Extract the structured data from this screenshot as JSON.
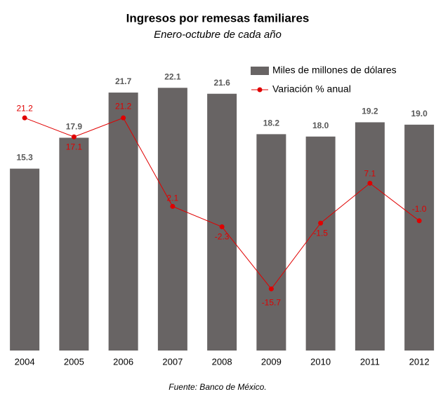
{
  "chart_data": {
    "type": "bar_line",
    "title": "Ingresos por remesas familiares",
    "subtitle": "Enero-octubre de cada año",
    "source": "Fuente: Banco de México.",
    "categories": [
      "2004",
      "2005",
      "2006",
      "2007",
      "2008",
      "2009",
      "2010",
      "2011",
      "2012"
    ],
    "series": [
      {
        "name": "Miles de millones de dólares",
        "color": "#686464",
        "type": "bar",
        "values": [
          15.3,
          17.9,
          21.7,
          22.1,
          21.6,
          18.2,
          18.0,
          19.2,
          19.0
        ],
        "value_labels": [
          "15.3",
          "17.9",
          "21.7",
          "22.1",
          "21.6",
          "18.2",
          "18.0",
          "19.2",
          "19.0"
        ]
      },
      {
        "name": "Variación % anual",
        "color": "#e00000",
        "type": "line",
        "axis": "y2",
        "values": [
          21.2,
          17.1,
          21.2,
          2.1,
          -2.3,
          -15.7,
          -1.5,
          7.1,
          -1.0
        ],
        "value_labels": [
          "21.2",
          "17.1",
          "21.2",
          "2.1",
          "-2.3",
          "-15.7",
          "-1.5",
          "7.1",
          "-1.0"
        ]
      }
    ],
    "ylim": [
      0,
      23
    ],
    "y2lim": [
      -29,
      30
    ],
    "legend": "top-right"
  }
}
